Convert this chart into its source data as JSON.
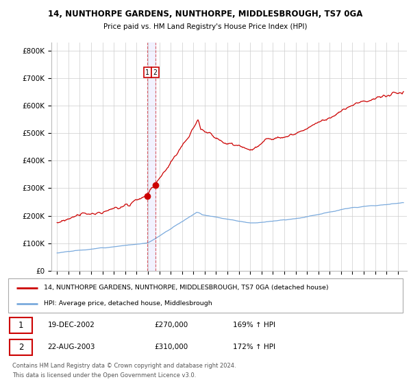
{
  "title1": "14, NUNTHORPE GARDENS, NUNTHORPE, MIDDLESBROUGH, TS7 0GA",
  "title2": "Price paid vs. HM Land Registry's House Price Index (HPI)",
  "ylabel_ticks": [
    "£0",
    "£100K",
    "£200K",
    "£300K",
    "£400K",
    "£500K",
    "£600K",
    "£700K",
    "£800K"
  ],
  "ytick_vals": [
    0,
    100000,
    200000,
    300000,
    400000,
    500000,
    600000,
    700000,
    800000
  ],
  "ylim": [
    0,
    830000
  ],
  "xlim_start": 1994.5,
  "xlim_end": 2025.8,
  "xtick_years": [
    1995,
    1996,
    1997,
    1998,
    1999,
    2000,
    2001,
    2002,
    2003,
    2004,
    2005,
    2006,
    2007,
    2008,
    2009,
    2010,
    2011,
    2012,
    2013,
    2014,
    2015,
    2016,
    2017,
    2018,
    2019,
    2020,
    2021,
    2022,
    2023,
    2024,
    2025
  ],
  "legend_line1": "14, NUNTHORPE GARDENS, NUNTHORPE, MIDDLESBROUGH, TS7 0GA (detached house)",
  "legend_line2": "HPI: Average price, detached house, Middlesbrough",
  "sale1_label": "1",
  "sale1_date": "19-DEC-2002",
  "sale1_price": "£270,000",
  "sale1_hpi": "169% ↑ HPI",
  "sale1_x": 2002.96,
  "sale1_y": 270000,
  "sale2_label": "2",
  "sale2_date": "22-AUG-2003",
  "sale2_price": "£310,000",
  "sale2_hpi": "172% ↑ HPI",
  "sale2_x": 2003.64,
  "sale2_y": 310000,
  "vline_x1": 2002.96,
  "vline_x2": 2003.64,
  "red_line_color": "#cc0000",
  "blue_line_color": "#7aaadd",
  "footnote1": "Contains HM Land Registry data © Crown copyright and database right 2024.",
  "footnote2": "This data is licensed under the Open Government Licence v3.0."
}
